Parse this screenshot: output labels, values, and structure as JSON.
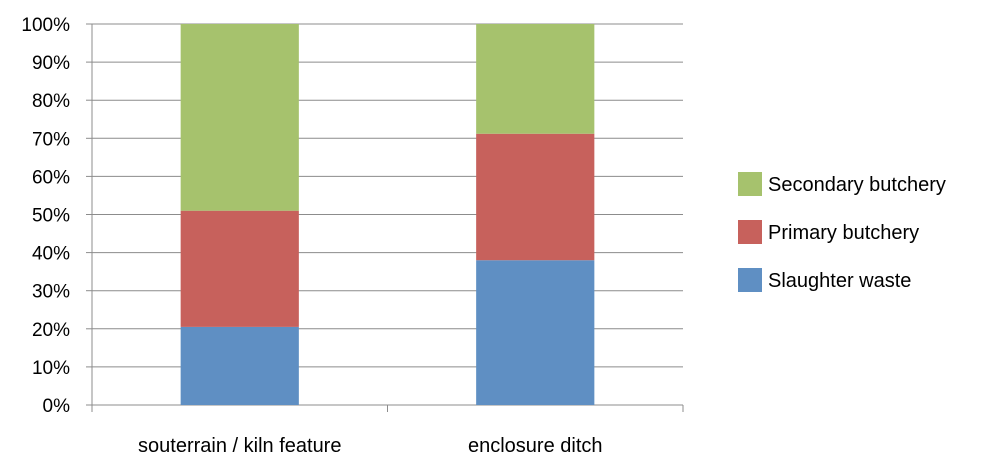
{
  "chart_data": {
    "type": "bar",
    "stacked": true,
    "percent": true,
    "categories": [
      "souterrain / kiln feature",
      "enclosure ditch"
    ],
    "series": [
      {
        "name": "Slaughter waste",
        "values": [
          20.5,
          38
        ],
        "color": "#5f8fc3"
      },
      {
        "name": "Primary butchery",
        "values": [
          30.5,
          33.2
        ],
        "color": "#c7615c"
      },
      {
        "name": "Secondary butchery",
        "values": [
          49,
          28.8
        ],
        "color": "#a6c26d"
      }
    ],
    "y_ticks": [
      "0%",
      "10%",
      "20%",
      "30%",
      "40%",
      "50%",
      "60%",
      "70%",
      "80%",
      "90%",
      "100%"
    ],
    "ylim": [
      0,
      100
    ],
    "grid": true,
    "legend": {
      "position": "right",
      "order": [
        "Secondary butchery",
        "Primary butchery",
        "Slaughter waste"
      ]
    }
  }
}
